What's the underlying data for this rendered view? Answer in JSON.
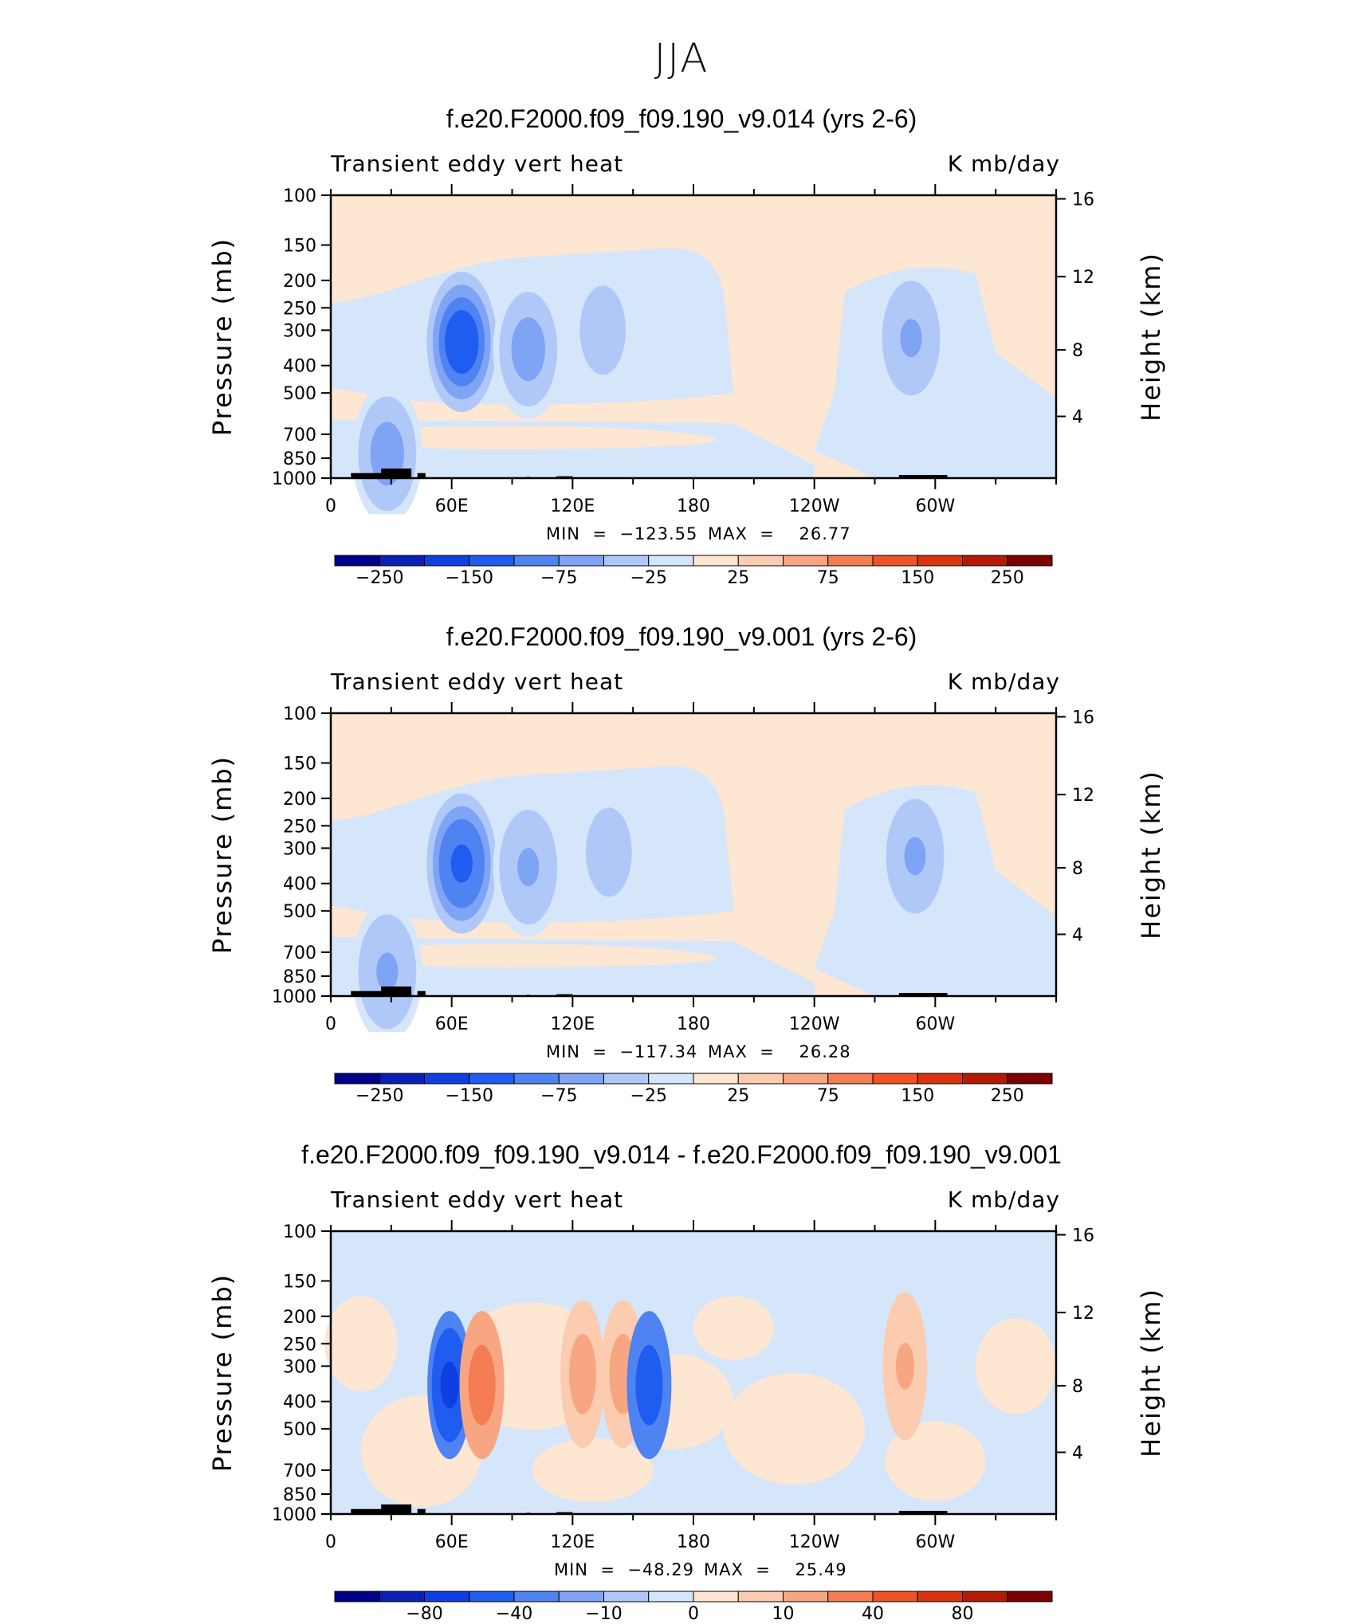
{
  "figure_title": "JJA",
  "colors": {
    "cold_palette": [
      "#00008b",
      "#0a1fb4",
      "#0f3fe0",
      "#1f5cf0",
      "#4f83f2",
      "#7fa4f5",
      "#b0c8f8",
      "#d5e6fb"
    ],
    "warm_palette": [
      "#fde6d2",
      "#fbccb0",
      "#f8a682",
      "#f47d53",
      "#ee5326",
      "#d9340f",
      "#b51a05",
      "#7d0000"
    ],
    "land": "#000000"
  },
  "panels": [
    {
      "title": "f.e20.F2000.f09_f09.190_v9.014 (yrs 2-6)",
      "left_label": "Transient  eddy  vert  heat",
      "right_label": "K  mb/day",
      "min_label": "MIN  =  −123.55",
      "max_label": "MAX  =    26.77"
    },
    {
      "title": "f.e20.F2000.f09_f09.190_v9.001 (yrs 2-6)",
      "left_label": "Transient  eddy  vert  heat",
      "right_label": "K  mb/day",
      "min_label": "MIN  =  −117.34",
      "max_label": "MAX  =    26.28"
    },
    {
      "title": "f.e20.F2000.f09_f09.190_v9.014 - f.e20.F2000.f09_f09.190_v9.001",
      "left_label": "Transient  eddy  vert  heat",
      "right_label": "K  mb/day",
      "min_label": "MIN  =  −48.29",
      "max_label": "MAX  =    25.49"
    }
  ],
  "chart_data": [
    {
      "type": "heatmap",
      "title": "f.e20.F2000.f09_f09.190_v9.014 (yrs 2-6)",
      "variable": "Transient eddy vert heat",
      "units": "K mb/day",
      "xlabel": "",
      "ylabel": "Pressure (mb)",
      "y2label": "Height (km)",
      "x_ticks": [
        "0",
        "60E",
        "120E",
        "180",
        "120W",
        "60W"
      ],
      "y_ticks": [
        "100",
        "150",
        "200",
        "250",
        "300",
        "400",
        "500",
        "700",
        "850",
        "1000"
      ],
      "y2_ticks": [
        "16",
        "12",
        "8",
        "4"
      ],
      "colorbar_labels": [
        "−250",
        "−150",
        "−75",
        "−25",
        "25",
        "75",
        "150",
        "250"
      ],
      "min": -123.55,
      "max": 26.77,
      "features": [
        {
          "lon": 65,
          "p": 330,
          "value": -120
        },
        {
          "lon": 98,
          "p": 350,
          "value": -60
        },
        {
          "lon": 135,
          "p": 300,
          "value": -45
        },
        {
          "lon": 288,
          "p": 320,
          "value": -50
        },
        {
          "lon": 28,
          "p": 820,
          "value": -60
        }
      ]
    },
    {
      "type": "heatmap",
      "title": "f.e20.F2000.f09_f09.190_v9.001 (yrs 2-6)",
      "variable": "Transient eddy vert heat",
      "units": "K mb/day",
      "xlabel": "",
      "ylabel": "Pressure (mb)",
      "y2label": "Height (km)",
      "x_ticks": [
        "0",
        "60E",
        "120E",
        "180",
        "120W",
        "60W"
      ],
      "y_ticks": [
        "100",
        "150",
        "200",
        "250",
        "300",
        "400",
        "500",
        "700",
        "850",
        "1000"
      ],
      "y2_ticks": [
        "16",
        "12",
        "8",
        "4"
      ],
      "colorbar_labels": [
        "−250",
        "−150",
        "−75",
        "−25",
        "25",
        "75",
        "150",
        "250"
      ],
      "min": -117.34,
      "max": 26.28,
      "features": [
        {
          "lon": 65,
          "p": 340,
          "value": -115
        },
        {
          "lon": 98,
          "p": 350,
          "value": -55
        },
        {
          "lon": 138,
          "p": 310,
          "value": -45
        },
        {
          "lon": 290,
          "p": 320,
          "value": -50
        },
        {
          "lon": 28,
          "p": 820,
          "value": -55
        }
      ]
    },
    {
      "type": "heatmap",
      "title": "f.e20.F2000.f09_f09.190_v9.014 - f.e20.F2000.f09_f09.190_v9.001",
      "variable": "Transient eddy vert heat",
      "units": "K mb/day",
      "xlabel": "",
      "ylabel": "Pressure (mb)",
      "y2label": "Height (km)",
      "x_ticks": [
        "0",
        "60E",
        "120E",
        "180",
        "120W",
        "60W"
      ],
      "y_ticks": [
        "100",
        "150",
        "200",
        "250",
        "300",
        "400",
        "500",
        "700",
        "850",
        "1000"
      ],
      "y2_ticks": [
        "16",
        "12",
        "8",
        "4"
      ],
      "colorbar_labels": [
        "−80",
        "−40",
        "−10",
        "0",
        "10",
        "40",
        "80"
      ],
      "min": -48.29,
      "max": 25.49,
      "features": [
        {
          "lon": 59,
          "p": 350,
          "value": -45
        },
        {
          "lon": 75,
          "p": 350,
          "value": 25
        },
        {
          "lon": 125,
          "p": 320,
          "value": 15
        },
        {
          "lon": 145,
          "p": 320,
          "value": 15
        },
        {
          "lon": 158,
          "p": 350,
          "value": -25
        },
        {
          "lon": 285,
          "p": 300,
          "value": 12
        }
      ]
    }
  ]
}
